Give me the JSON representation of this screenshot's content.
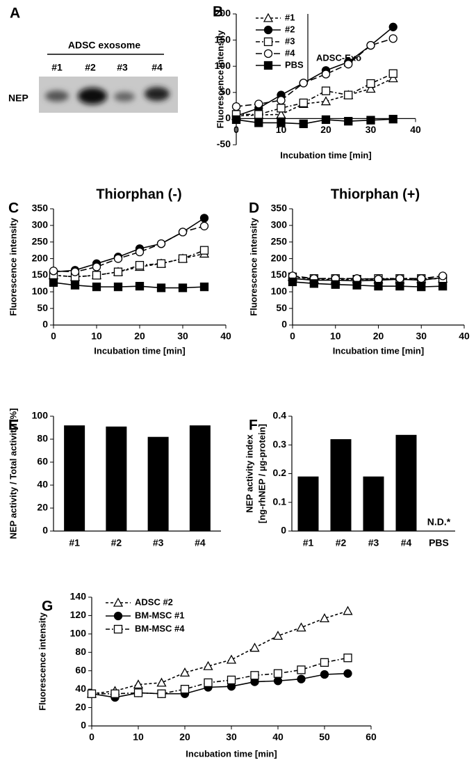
{
  "blot": {
    "panel": "A",
    "title": "ADSC exosome",
    "lanes": [
      "#1",
      "#2",
      "#3",
      "#4"
    ],
    "row_label": "NEP"
  },
  "chart_data": [
    {
      "panel": "B",
      "type": "line",
      "xlabel": "Incubation time [min]",
      "ylabel": "Fluorescence intensity",
      "x": [
        0,
        5,
        10,
        15,
        20,
        25,
        30,
        35
      ],
      "xlim": [
        0,
        40
      ],
      "xticks": [
        0,
        10,
        20,
        30,
        40
      ],
      "ylim": [
        -50,
        200
      ],
      "yticks": [
        -50,
        0,
        50,
        100,
        150,
        200
      ],
      "legend": "upper left",
      "legend_group_label": "ADSC-Exo",
      "series": [
        {
          "name": "#1",
          "color": "#000000",
          "marker": "triangle-open",
          "line_style": "dashed",
          "values": [
            5,
            7,
            8,
            28,
            33,
            45,
            57,
            77
          ]
        },
        {
          "name": "#2",
          "color": "#000000",
          "marker": "circle-filled",
          "line_style": "solid",
          "values": [
            5,
            20,
            45,
            68,
            92,
            108,
            140,
            175
          ]
        },
        {
          "name": "#3",
          "color": "#000000",
          "marker": "square-open",
          "line_style": "dashdot",
          "values": [
            8,
            8,
            20,
            30,
            53,
            45,
            67,
            86
          ]
        },
        {
          "name": "#4",
          "color": "#000000",
          "marker": "circle-open",
          "line_style": "longdash",
          "values": [
            23,
            28,
            35,
            68,
            85,
            104,
            140,
            153
          ]
        },
        {
          "name": "PBS",
          "color": "#000000",
          "marker": "square-filled",
          "line_style": "solid",
          "values": [
            -2,
            -8,
            -8,
            -10,
            -2,
            -5,
            -3,
            -1
          ]
        }
      ]
    },
    {
      "panel": "C",
      "type": "line",
      "title": "Thiorphan (-)",
      "xlabel": "Incubation time [min]",
      "ylabel": "Fluorescence intensity",
      "x": [
        0,
        5,
        10,
        15,
        20,
        25,
        30,
        35
      ],
      "xlim": [
        0,
        40
      ],
      "xticks": [
        0,
        10,
        20,
        30,
        40
      ],
      "ylim": [
        0,
        350
      ],
      "yticks": [
        0,
        50,
        100,
        150,
        200,
        250,
        300,
        350
      ],
      "series": [
        {
          "name": "#1",
          "color": "#000000",
          "marker": "triangle-open",
          "line_style": "dashed",
          "values": [
            150,
            145,
            150,
            160,
            175,
            185,
            200,
            215
          ]
        },
        {
          "name": "#2",
          "color": "#000000",
          "marker": "circle-filled",
          "line_style": "solid",
          "values": [
            160,
            165,
            185,
            205,
            230,
            245,
            280,
            322
          ]
        },
        {
          "name": "#3",
          "color": "#000000",
          "marker": "square-open",
          "line_style": "dashdot",
          "values": [
            150,
            145,
            150,
            160,
            180,
            185,
            200,
            225
          ]
        },
        {
          "name": "#4",
          "color": "#000000",
          "marker": "circle-open",
          "line_style": "longdash",
          "values": [
            163,
            160,
            175,
            200,
            220,
            245,
            280,
            298
          ]
        },
        {
          "name": "PBS",
          "color": "#000000",
          "marker": "square-filled",
          "line_style": "solid",
          "values": [
            128,
            120,
            115,
            115,
            117,
            112,
            112,
            115
          ]
        }
      ]
    },
    {
      "panel": "D",
      "type": "line",
      "title": "Thiorphan (+)",
      "xlabel": "Incubation time [min]",
      "ylabel": "Fluorescence intensity",
      "x": [
        0,
        5,
        10,
        15,
        20,
        25,
        30,
        35
      ],
      "xlim": [
        0,
        40
      ],
      "xticks": [
        0,
        10,
        20,
        30,
        40
      ],
      "ylim": [
        0,
        350
      ],
      "yticks": [
        0,
        50,
        100,
        150,
        200,
        250,
        300,
        350
      ],
      "series": [
        {
          "name": "#1",
          "color": "#000000",
          "marker": "triangle-open",
          "line_style": "dashed",
          "values": [
            145,
            138,
            137,
            138,
            137,
            137,
            138,
            140
          ]
        },
        {
          "name": "#2",
          "color": "#000000",
          "marker": "circle-filled",
          "line_style": "solid",
          "values": [
            140,
            135,
            135,
            133,
            135,
            138,
            135,
            143
          ]
        },
        {
          "name": "#3",
          "color": "#000000",
          "marker": "square-open",
          "line_style": "dashdot",
          "values": [
            145,
            140,
            140,
            138,
            140,
            140,
            140,
            140
          ]
        },
        {
          "name": "#4",
          "color": "#000000",
          "marker": "circle-open",
          "line_style": "longdash",
          "values": [
            148,
            140,
            140,
            140,
            138,
            140,
            140,
            148
          ]
        },
        {
          "name": "PBS",
          "color": "#000000",
          "marker": "square-filled",
          "line_style": "solid",
          "values": [
            130,
            125,
            122,
            120,
            117,
            117,
            115,
            117
          ]
        }
      ]
    },
    {
      "panel": "E",
      "type": "bar",
      "ylabel": "NEP activity / Total activity [%]",
      "categories": [
        "#1",
        "#2",
        "#3",
        "#4"
      ],
      "values": [
        92,
        91,
        82,
        92
      ],
      "color": "#000000",
      "ylim": [
        0,
        100
      ],
      "yticks": [
        0,
        20,
        40,
        60,
        80,
        100
      ]
    },
    {
      "panel": "F",
      "type": "bar",
      "ylabel": [
        "NEP activity index",
        "[ng-rhNEP / µg-protein]"
      ],
      "categories": [
        "#1",
        "#2",
        "#3",
        "#4",
        "PBS"
      ],
      "values": [
        0.19,
        0.32,
        0.19,
        0.335,
        null
      ],
      "annotation": "N.D.*",
      "color": "#000000",
      "ylim": [
        0,
        0.4
      ],
      "yticks": [
        0,
        0.1,
        0.2,
        0.3,
        0.4
      ]
    },
    {
      "panel": "G",
      "type": "line",
      "xlabel": "Incubation time [min]",
      "ylabel": "Fluorescence intensity",
      "x": [
        0,
        5,
        10,
        15,
        20,
        25,
        30,
        35,
        40,
        45,
        50,
        55
      ],
      "xlim": [
        0,
        60
      ],
      "xticks": [
        0,
        10,
        20,
        30,
        40,
        50,
        60
      ],
      "ylim": [
        0,
        140
      ],
      "yticks": [
        0,
        20,
        40,
        60,
        80,
        100,
        120,
        140
      ],
      "legend": "upper left",
      "series": [
        {
          "name": "ADSC #2",
          "color": "#000000",
          "marker": "triangle-open",
          "line_style": "dashed",
          "values": [
            35,
            38,
            45,
            47,
            58,
            65,
            72,
            85,
            98,
            107,
            117,
            125
          ]
        },
        {
          "name": "BM-MSC #1",
          "color": "#000000",
          "marker": "circle-filled",
          "line_style": "solid",
          "values": [
            35,
            31,
            36,
            35,
            35,
            42,
            43,
            48,
            49,
            51,
            56,
            57
          ]
        },
        {
          "name": "BM-MSC #4",
          "color": "#000000",
          "marker": "square-open",
          "line_style": "dashdot",
          "values": [
            35,
            35,
            36,
            35,
            40,
            47,
            50,
            55,
            57,
            61,
            69,
            74
          ]
        }
      ]
    }
  ]
}
